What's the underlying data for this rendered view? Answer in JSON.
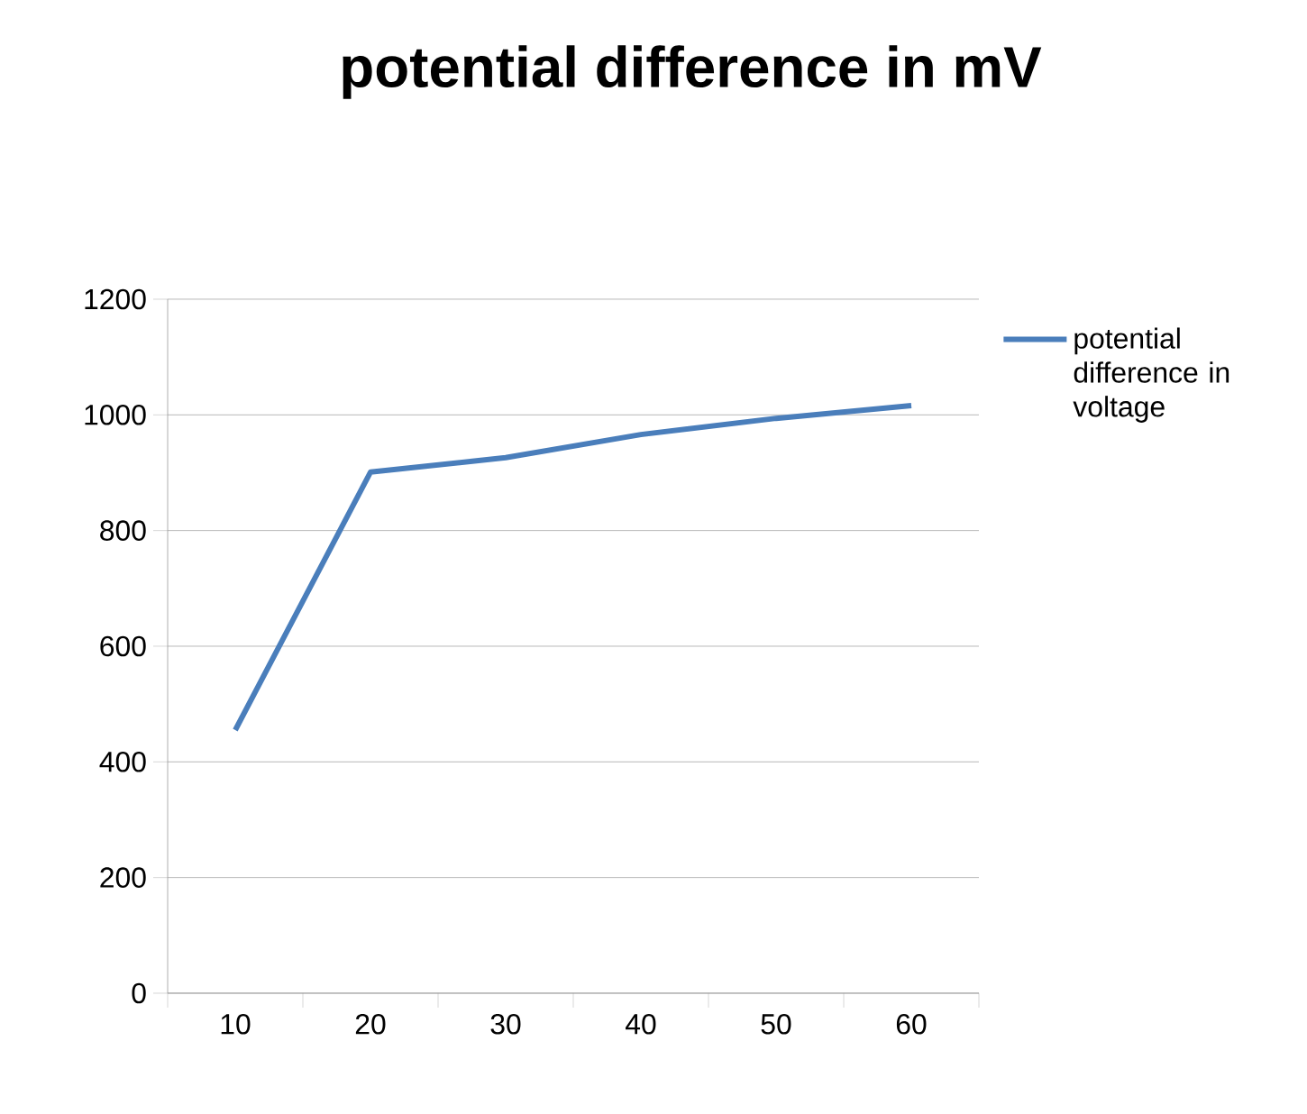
{
  "chart_data": {
    "type": "line",
    "title": "potential difference in mV",
    "categories": [
      "10",
      "20",
      "30",
      "40",
      "50",
      "60"
    ],
    "series": [
      {
        "name": "potential difference in voltage",
        "color": "#4a7ebb",
        "values": [
          455,
          901,
          926,
          966,
          994,
          1016
        ]
      }
    ],
    "ylim": [
      0,
      1200
    ],
    "yticks": [
      0,
      200,
      400,
      600,
      800,
      1000,
      1200
    ],
    "grid": "y",
    "legend": "right",
    "marker": "none",
    "line_style": "solid"
  }
}
